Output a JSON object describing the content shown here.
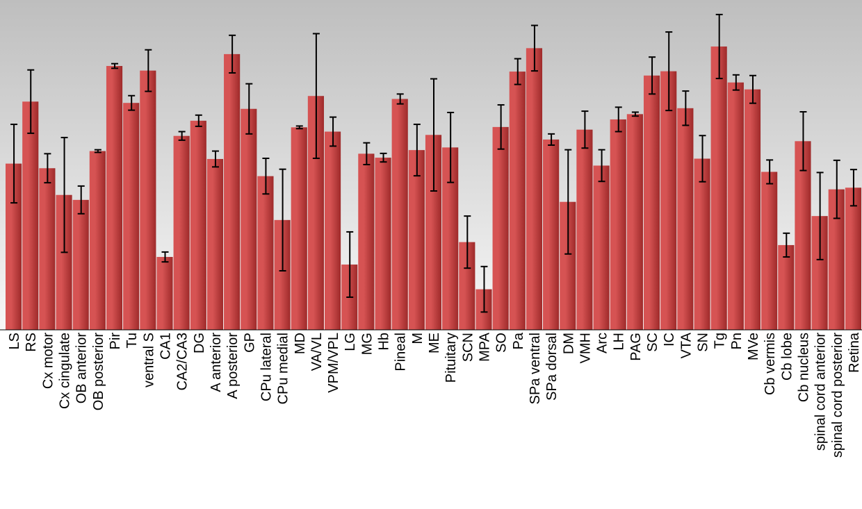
{
  "chart_data": {
    "type": "bar",
    "title": "",
    "xlabel": "",
    "ylabel": "",
    "ylim": [
      0,
      100
    ],
    "grid": false,
    "legend": "none",
    "error_bars": true,
    "colors": {
      "bar_dark": "#9e2a2a",
      "bar_light": "#d65353",
      "bg_top": "#bebebe",
      "bg_bottom": "#f7f7f7",
      "error_bar": "#000000",
      "axis": "#000000"
    },
    "categories": [
      "LS",
      "RS",
      "Cx motor",
      "Cx cingulate",
      "OB anterior",
      "OB posterior",
      "Pir",
      "Tu",
      "ventral S",
      "CA1",
      "CA2/CA3",
      "DG",
      "A anterior",
      "A posterior",
      "GP",
      "CPu lateral",
      "CPu medial",
      "MD",
      "VA/VL",
      "VPM/VPL",
      "LG",
      "MG",
      "Hb",
      "Pineal",
      "M",
      "ME",
      "Pituitary",
      "SCN",
      "MPA",
      "SO",
      "Pa",
      "SPa ventral",
      "SPa dorsal",
      "DM",
      "VMH",
      "Arc",
      "LH",
      "PAG",
      "SC",
      "IC",
      "VTA",
      "SN",
      "Tg",
      "Pn",
      "MVe",
      "Cb vermis",
      "Cb lobe",
      "Cb nucleus",
      "spinal cord anterior",
      "spinal cord posterior",
      "Retina"
    ],
    "values": [
      50.4,
      69.2,
      49.0,
      40.9,
      39.4,
      54.2,
      80.0,
      68.8,
      78.6,
      22.1,
      58.8,
      63.4,
      51.8,
      83.6,
      67.0,
      46.6,
      33.3,
      61.4,
      70.9,
      60.1,
      19.8,
      53.4,
      52.2,
      70.0,
      54.5,
      59.1,
      55.3,
      26.6,
      12.3,
      61.5,
      78.3,
      85.4,
      57.7,
      38.8,
      60.7,
      49.8,
      63.8,
      65.4,
      77.1,
      78.4,
      67.2,
      51.9,
      85.9,
      75.0,
      72.9,
      47.9,
      25.7,
      57.2,
      34.5,
      42.6,
      43.1
    ],
    "errors": [
      11.9,
      9.6,
      4.4,
      17.4,
      4.2,
      0.4,
      0.7,
      2.2,
      6.3,
      1.5,
      1.3,
      1.7,
      2.4,
      5.7,
      7.6,
      5.4,
      15.4,
      0.4,
      18.9,
      4.4,
      9.9,
      3.3,
      1.3,
      1.5,
      7.8,
      17.0,
      10.6,
      7.9,
      6.9,
      6.7,
      3.9,
      6.9,
      1.7,
      15.8,
      5.6,
      4.8,
      3.7,
      0.6,
      5.6,
      11.9,
      5.2,
      7.0,
      9.7,
      2.3,
      4.2,
      3.6,
      3.6,
      8.9,
      13.2,
      8.8,
      5.5
    ]
  }
}
